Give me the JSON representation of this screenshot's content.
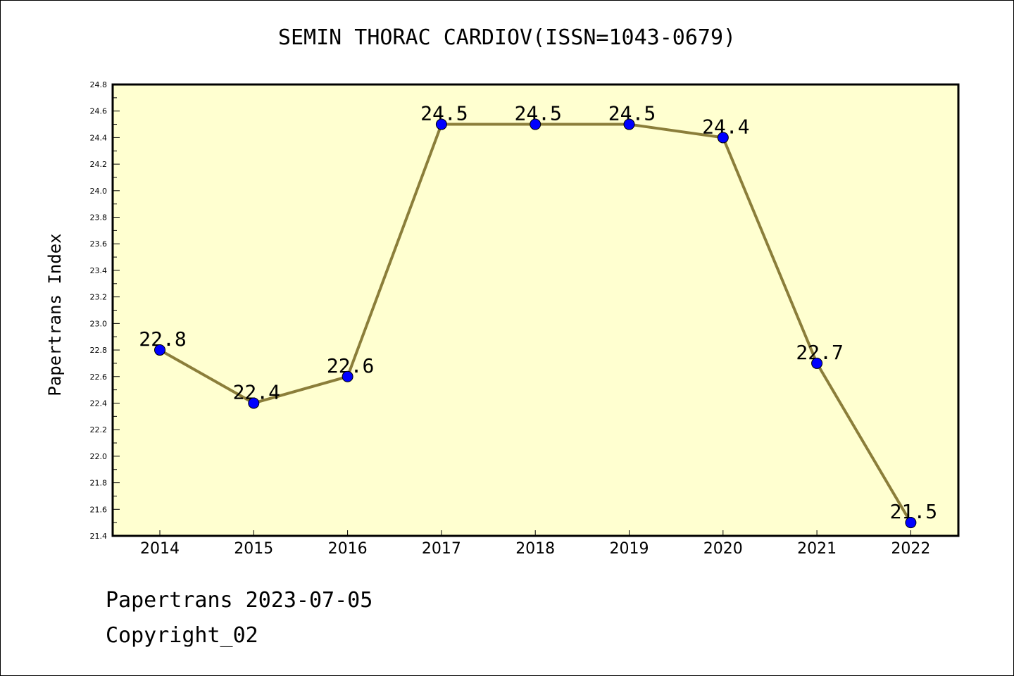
{
  "chart_data": {
    "type": "line",
    "title": "SEMIN THORAC CARDIOV(ISSN=1043-0679)",
    "xlabel": "",
    "ylabel": "Papertrans Index",
    "categories": [
      "2014",
      "2015",
      "2016",
      "2017",
      "2018",
      "2019",
      "2020",
      "2021",
      "2022"
    ],
    "series": [
      {
        "values": [
          22.8,
          22.4,
          22.6,
          24.5,
          24.5,
          24.5,
          24.4,
          22.7,
          21.5
        ]
      }
    ],
    "data_labels": [
      "22.8",
      "22.4",
      "22.6",
      "24.5",
      "24.5",
      "24.5",
      "24.4",
      "22.7",
      "21.5"
    ],
    "ylim": [
      21.4,
      24.8
    ],
    "yticks": [
      "21.4",
      "21.6",
      "21.8",
      "22.0",
      "22.2",
      "22.4",
      "22.6",
      "22.8",
      "23.0",
      "23.2",
      "23.4",
      "23.6",
      "23.8",
      "24.0",
      "24.2",
      "24.4",
      "24.6",
      "24.8"
    ],
    "grid": false,
    "legend": "none",
    "colors": {
      "plot_background": "#ffffd0",
      "line": "#8b7e3a",
      "marker": "#0000ff"
    }
  },
  "footer": {
    "source": "Papertrans 2023-07-05",
    "copyright": "Copyright_02"
  }
}
